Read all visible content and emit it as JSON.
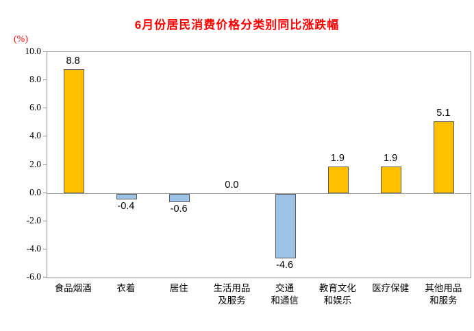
{
  "chart_data": {
    "type": "bar",
    "title": "6月份居民消费价格分类别同比涨跌幅",
    "unit_label": "(%)",
    "categories": [
      "食品烟酒",
      "衣着",
      "居住",
      "生活用品及服务",
      "交通和通信",
      "教育文化和娱乐",
      "医疗保健",
      "其他用品和服务"
    ],
    "category_display": [
      "食品烟酒",
      "衣着",
      "居住",
      "生活用品\n及服务",
      "交通\n和通信",
      "教育文化\n和娱乐",
      "医疗保健",
      "其他用品\n和服务"
    ],
    "values": [
      8.8,
      -0.4,
      -0.6,
      0.0,
      -4.6,
      1.9,
      1.9,
      5.1
    ],
    "value_labels": [
      "8.8",
      "-0.4",
      "-0.6",
      "0.0",
      "-4.6",
      "1.9",
      "1.9",
      "5.1"
    ],
    "ylim": [
      -6.0,
      10.0
    ],
    "ytick_labels": [
      "10.0",
      "8.0",
      "6.0",
      "4.0",
      "2.0",
      "0.0",
      "-2.0",
      "-4.0",
      "-6.0"
    ],
    "ytick_values": [
      10,
      8,
      6,
      4,
      2,
      0,
      -2,
      -4,
      -6
    ],
    "grid": "off",
    "legend": "none",
    "colors": {
      "title_text": "#ff0000",
      "unit_text": "#ff0000",
      "positive_bar": "#ffc000",
      "negative_bar": "#9dc3e6",
      "bar_border": "#595959",
      "axis_text": "#000000"
    }
  }
}
